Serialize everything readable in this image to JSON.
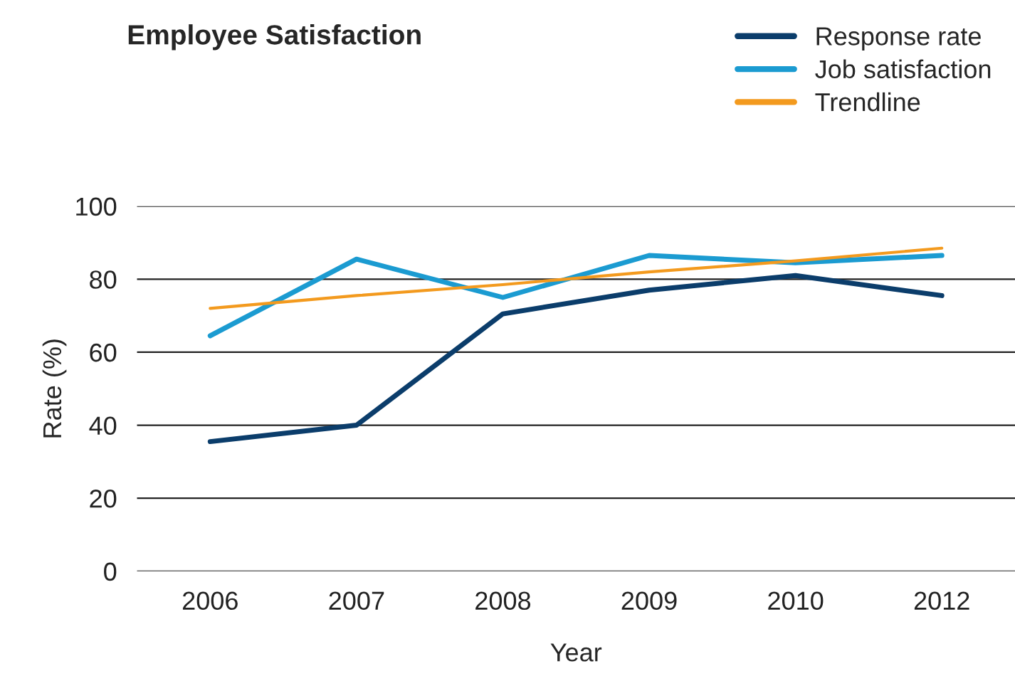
{
  "chart_data": {
    "type": "line",
    "title": "Employee Satisfaction",
    "xlabel": "Year",
    "ylabel": "Rate (%)",
    "categories": [
      "2006",
      "2007",
      "2008",
      "2009",
      "2010",
      "2012"
    ],
    "series": [
      {
        "name": "Response rate",
        "color": "#0b3d6b",
        "values": [
          35.5,
          40,
          70.5,
          77,
          81,
          75.5
        ]
      },
      {
        "name": "Job satisfaction",
        "color": "#1b9bd1",
        "values": [
          64.5,
          85.5,
          75,
          86.5,
          84.5,
          86.5
        ]
      },
      {
        "name": "Trendline",
        "color": "#f39a1e",
        "type": "line",
        "values": [
          72,
          75.5,
          78.5,
          82,
          85,
          88.5
        ]
      }
    ],
    "ylim": [
      0,
      100
    ],
    "yticks": [
      0,
      20,
      40,
      60,
      80,
      100
    ],
    "grid": "y",
    "legend": "top right",
    "marker": "none",
    "line_style": "solid"
  }
}
